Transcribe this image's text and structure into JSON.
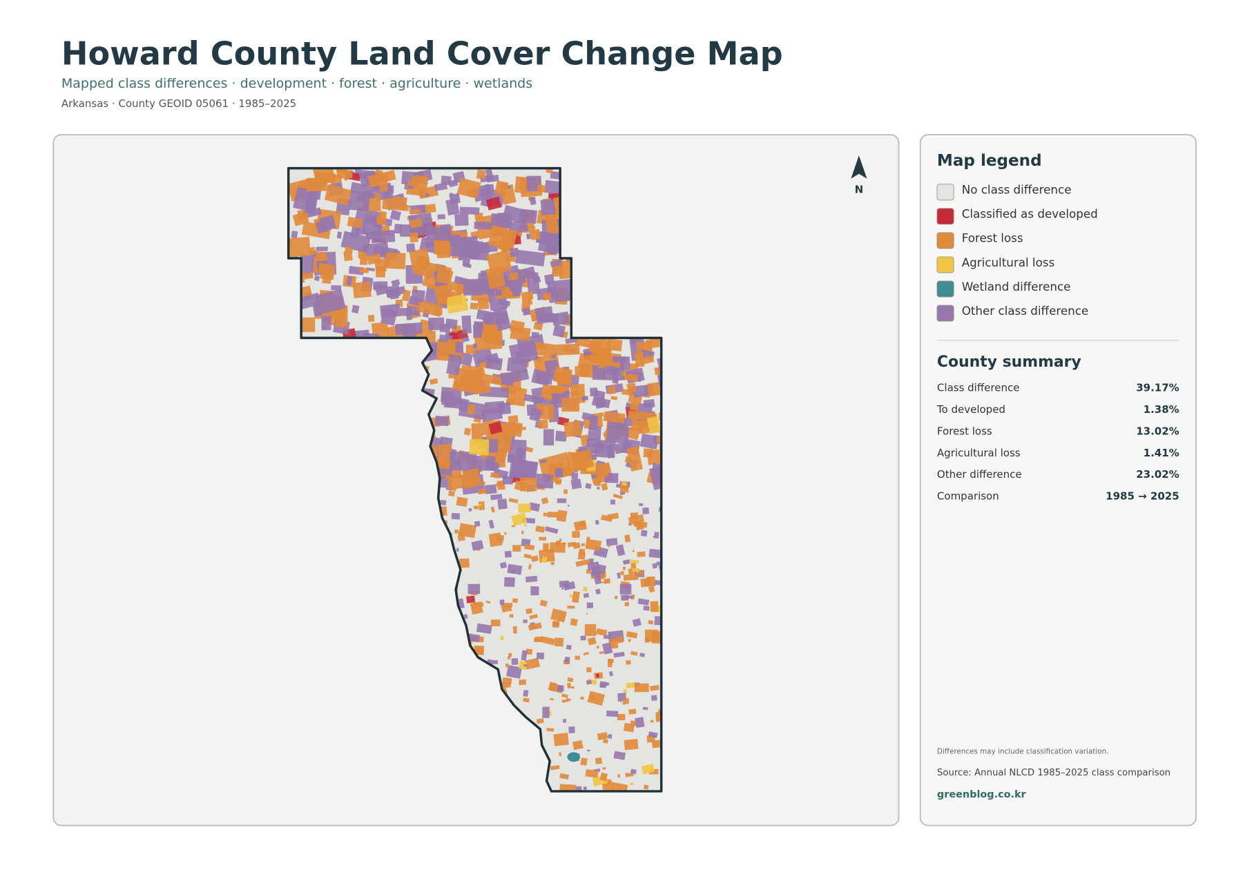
{
  "header": {
    "title": "Howard County Land Cover Change Map",
    "subtitle": "Mapped class differences · development · forest · agriculture · wetlands",
    "meta": "Arkansas · County GEOID 05061 · 1985–2025"
  },
  "map": {
    "north_label": "N"
  },
  "legend": {
    "title": "Map legend",
    "items": [
      {
        "label": "No class difference",
        "color": "#e4e4e1"
      },
      {
        "label": "Classified as developed",
        "color": "#c62a3a"
      },
      {
        "label": "Forest loss",
        "color": "#e08a3c"
      },
      {
        "label": "Agricultural loss",
        "color": "#f0c445"
      },
      {
        "label": "Wetland difference",
        "color": "#3f8c95"
      },
      {
        "label": "Other class difference",
        "color": "#9677ad"
      }
    ]
  },
  "summary": {
    "title": "County summary",
    "rows": [
      [
        "Class difference",
        "39.17%"
      ],
      [
        "To developed",
        "1.38%"
      ],
      [
        "Forest loss",
        "13.02%"
      ],
      [
        "Agricultural loss",
        "1.41%"
      ],
      [
        "Other difference",
        "23.02%"
      ],
      [
        "Comparison",
        "1985 → 2025"
      ]
    ]
  },
  "footer": {
    "note": "Differences may include classification variation.",
    "source": "Source: Annual NLCD 1985–2025 class comparison",
    "site": "greenblog.co.kr"
  }
}
